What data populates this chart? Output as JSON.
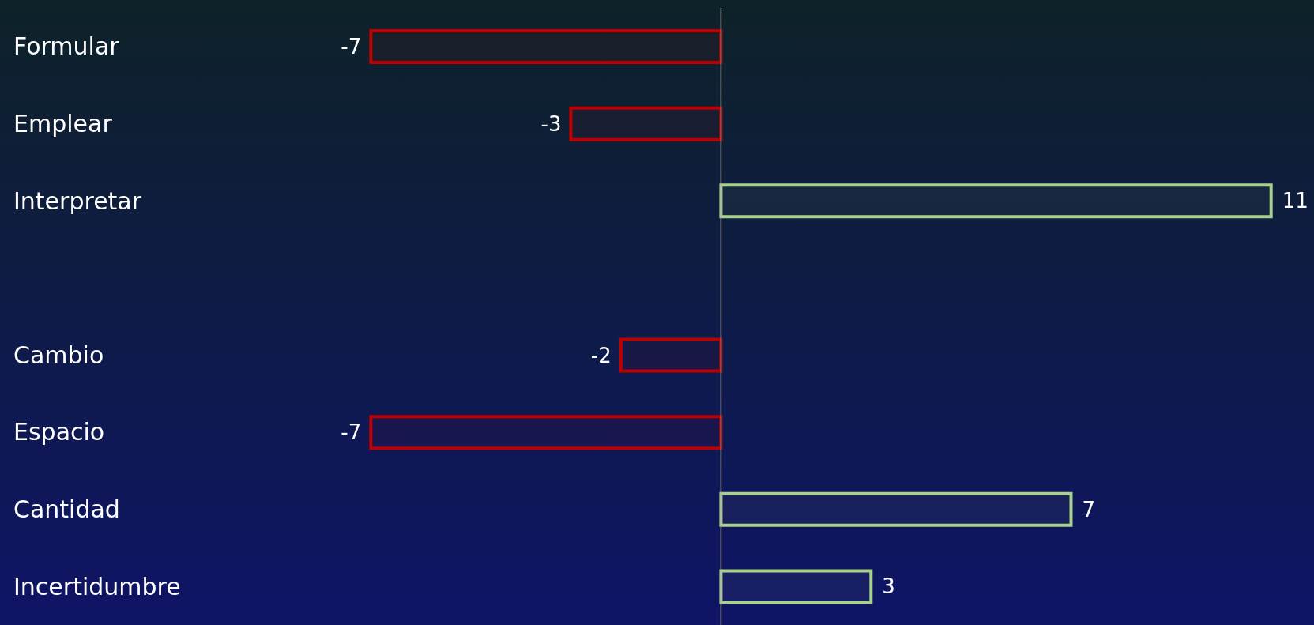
{
  "chart_data": {
    "type": "bar",
    "orientation": "horizontal",
    "categories": [
      "Formular",
      "Emplear",
      "Interpretar",
      null,
      "Cambio",
      "Espacio",
      "Cantidad",
      "Incertidumbre"
    ],
    "values": [
      -7,
      -3,
      11,
      null,
      -2,
      -7,
      7,
      3
    ],
    "colors": [
      "#c00000",
      "#c00000",
      "#a9d18e",
      null,
      "#c00000",
      "#c00000",
      "#a9d18e",
      "#a9d18e"
    ],
    "data_labels": true,
    "tick_labels": "y",
    "grid": false,
    "legend": false
  }
}
